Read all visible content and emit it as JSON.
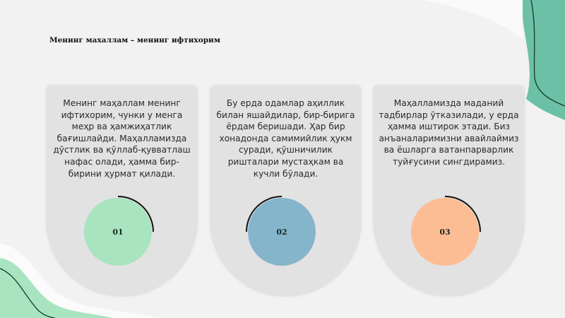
{
  "title": "Менинг махаллам – менинг ифтихорим",
  "colors": {
    "background": "#f2f2f2",
    "card": "#e2e2e2",
    "green": "#a8e4bf",
    "blue": "#85b5cb",
    "orange": "#fdbd94",
    "teal_blob": "#6cc0a6"
  },
  "cards": [
    {
      "text": "Менинг маҳаллам менинг ифтихорим, чунки у менга меҳр ва ҳамжиҳатлик бағишлайди. Маҳалламизда дўстлик ва қўллаб-қувватлаш нафас олади, ҳамма бир-бирини ҳурмат қилади.",
      "number": "01",
      "color": "#a8e4bf"
    },
    {
      "text": "Бу ерда одамлар аҳиллик билан яшайдилар, бир-бирига ёрдам беришади. Ҳар бир хонадонда самимийлик ҳукм суради, қўшничилик ришталари мустаҳкам ва кучли бўлади.",
      "number": "02",
      "color": "#85b5cb"
    },
    {
      "text": "Маҳалламизда маданий тадбирлар ўтказилади, у ерда ҳамма иштирок этади. Биз анъаналаримизни авайлаймиз ва ёшларга ватанпарварлик туйғусини сингдирамиз.",
      "number": "03",
      "color": "#fdbd94"
    }
  ]
}
